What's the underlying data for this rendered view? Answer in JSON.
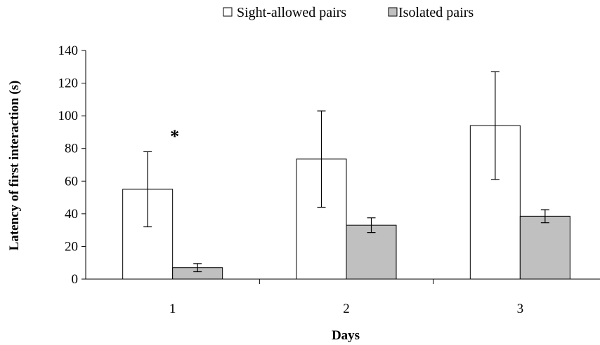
{
  "chart_data": {
    "type": "bar",
    "categories": [
      "1",
      "2",
      "3"
    ],
    "series": [
      {
        "name": "Sight-allowed pairs",
        "values": [
          55,
          73.5,
          94
        ],
        "error": [
          23,
          29.5,
          33
        ],
        "color": "#ffffff"
      },
      {
        "name": "Isolated pairs",
        "values": [
          7,
          33,
          38.5
        ],
        "error": [
          2.5,
          4.5,
          4
        ],
        "color": "#c0c0c0"
      }
    ],
    "xlabel": "Days",
    "ylabel": "Latency of first interaction (s)",
    "ylim": [
      0,
      140
    ],
    "yticks": [
      "0",
      "20",
      "40",
      "60",
      "80",
      "100",
      "120",
      "140"
    ],
    "grid": false,
    "legend_position": "top",
    "annotations": [
      {
        "text": "*",
        "category": "1"
      }
    ]
  }
}
